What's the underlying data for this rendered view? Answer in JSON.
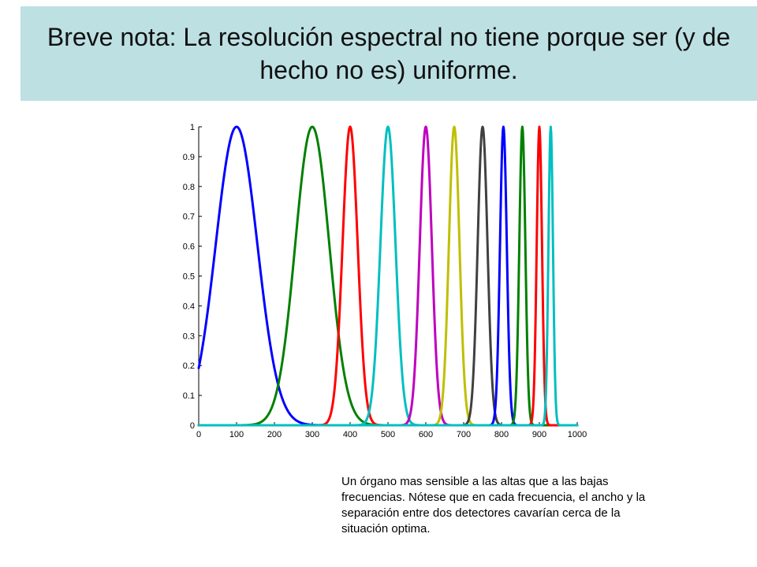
{
  "slide": {
    "title": "Breve nota: La resolución espectral no tiene porque ser (y de hecho no es) uniforme.",
    "caption": "Un órgano mas sensible a las altas que a las bajas frecuencias. Nótese que en cada frecuencia, el ancho y la separación entre dos detectores cavarían cerca de la situación optima.",
    "banner_color": "#bde0e3"
  },
  "chart_data": {
    "type": "line",
    "title": "",
    "xlabel": "",
    "ylabel": "",
    "xlim": [
      0,
      1000
    ],
    "ylim": [
      0,
      1
    ],
    "x_ticks": [
      "0",
      "100",
      "200",
      "300",
      "400",
      "500",
      "600",
      "700",
      "800",
      "900",
      "1000"
    ],
    "y_ticks": [
      "0",
      "0.1",
      "0.2",
      "0.3",
      "0.4",
      "0.5",
      "0.6",
      "0.7",
      "0.8",
      "0.9",
      "1"
    ],
    "grid": false,
    "legend": "none",
    "curve_shape": "gaussian",
    "series": [
      {
        "center": 100,
        "width": 55,
        "color": "#0000ff"
      },
      {
        "center": 300,
        "width": 45,
        "color": "#008000"
      },
      {
        "center": 400,
        "width": 20,
        "color": "#ff0000"
      },
      {
        "center": 500,
        "width": 20,
        "color": "#00bfbf"
      },
      {
        "center": 600,
        "width": 16,
        "color": "#bf00bf"
      },
      {
        "center": 675,
        "width": 14,
        "color": "#bfbf00"
      },
      {
        "center": 750,
        "width": 13,
        "color": "#404040"
      },
      {
        "center": 805,
        "width": 9,
        "color": "#0000ff"
      },
      {
        "center": 855,
        "width": 8,
        "color": "#008000"
      },
      {
        "center": 900,
        "width": 7,
        "color": "#ff0000"
      },
      {
        "center": 930,
        "width": 6,
        "color": "#00bfbf"
      }
    ]
  }
}
